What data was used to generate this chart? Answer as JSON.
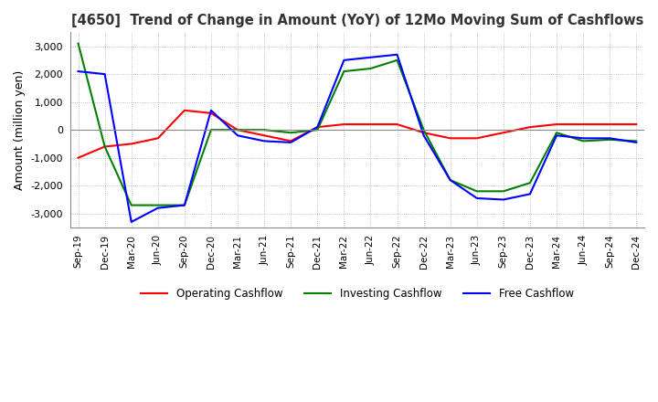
{
  "title": "[4650]  Trend of Change in Amount (YoY) of 12Mo Moving Sum of Cashflows",
  "ylabel": "Amount (million yen)",
  "x_labels": [
    "Sep-19",
    "Dec-19",
    "Mar-20",
    "Jun-20",
    "Sep-20",
    "Dec-20",
    "Mar-21",
    "Jun-21",
    "Sep-21",
    "Dec-21",
    "Mar-22",
    "Jun-22",
    "Sep-22",
    "Dec-22",
    "Mar-23",
    "Jun-23",
    "Sep-23",
    "Dec-23",
    "Mar-24",
    "Jun-24",
    "Sep-24",
    "Dec-24"
  ],
  "operating": [
    -1000,
    -600,
    -500,
    -300,
    700,
    600,
    0,
    -200,
    -400,
    100,
    200,
    200,
    200,
    -100,
    -300,
    -300,
    -100,
    100,
    200,
    200,
    200,
    200
  ],
  "investing": [
    3100,
    -600,
    -2700,
    -2700,
    -2700,
    0,
    0,
    0,
    -100,
    0,
    2100,
    2200,
    2500,
    0,
    -1800,
    -2200,
    -2200,
    -1900,
    -100,
    -400,
    -350,
    -400
  ],
  "free": [
    2100,
    2000,
    -3300,
    -2800,
    -2700,
    700,
    -200,
    -400,
    -450,
    100,
    2500,
    2600,
    2700,
    -200,
    -1800,
    -2450,
    -2500,
    -2300,
    -200,
    -300,
    -300,
    -450
  ],
  "ylim": [
    -3500,
    3500
  ],
  "yticks": [
    -3000,
    -2000,
    -1000,
    0,
    1000,
    2000,
    3000
  ],
  "colors": {
    "operating": "#FF0000",
    "investing": "#008000",
    "free": "#0000FF"
  },
  "legend_labels": [
    "Operating Cashflow",
    "Investing Cashflow",
    "Free Cashflow"
  ],
  "grid_color": "#AAAAAA",
  "background_color": "#FFFFFF",
  "title_color": "#333333"
}
